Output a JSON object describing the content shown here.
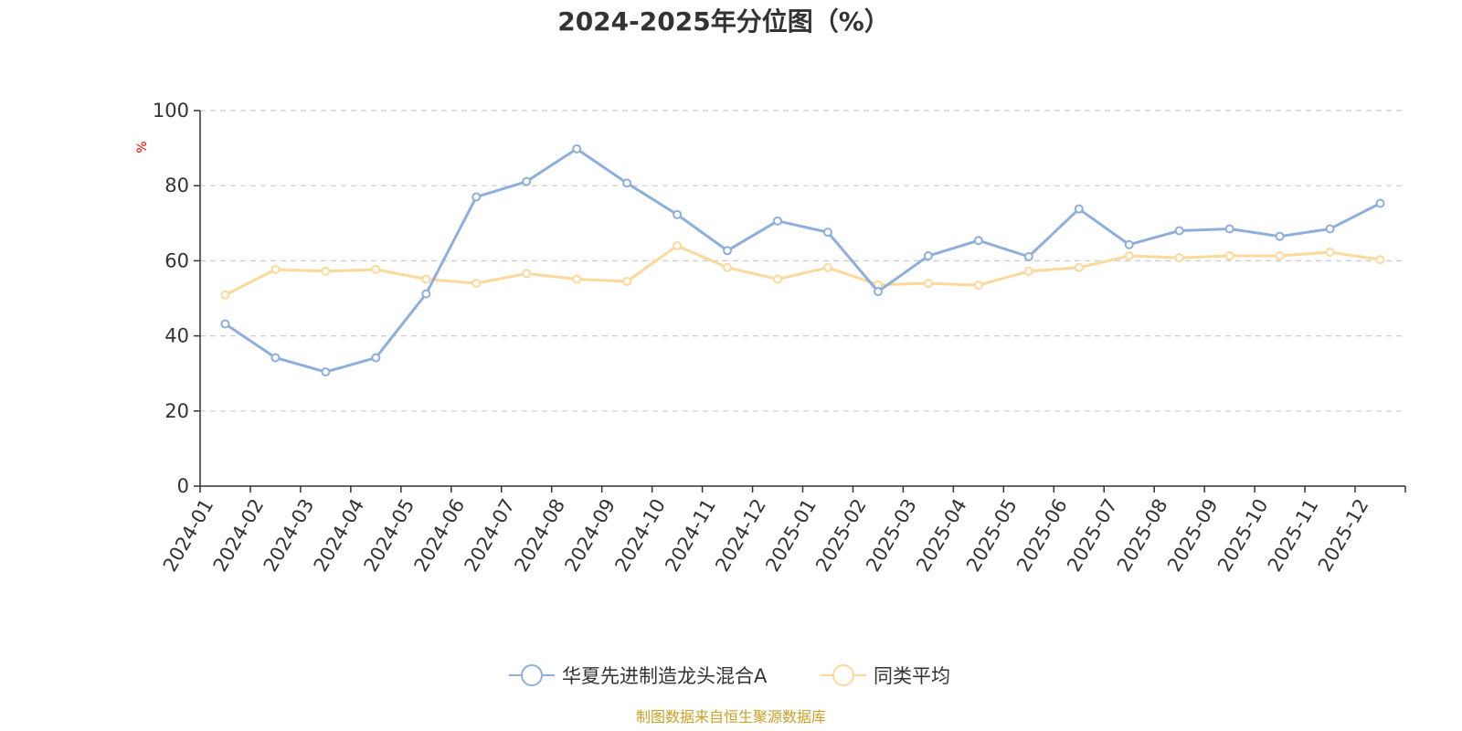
{
  "chart_data": {
    "type": "line",
    "title": "2024-2025年分位图（%）",
    "ylabel": "%",
    "xlabel": "",
    "ylim": [
      0,
      100
    ],
    "yticks": [
      0,
      20,
      40,
      60,
      80,
      100
    ],
    "grid": true,
    "legend_position": "bottom-center",
    "categories": [
      "2024-01",
      "2024-02",
      "2024-03",
      "2024-04",
      "2024-05",
      "2024-06",
      "2024-07",
      "2024-08",
      "2024-09",
      "2024-10",
      "2024-11",
      "2024-12",
      "2025-01",
      "2025-02",
      "2025-03",
      "2025-04",
      "2025-05",
      "2025-06",
      "2025-07",
      "2025-08",
      "2025-09",
      "2025-10",
      "2025-11",
      "2025-12"
    ],
    "series": [
      {
        "name": "华夏先进制造龙头混合A",
        "color": "#8eaedb",
        "values": [
          43.2,
          34.2,
          30.4,
          34.2,
          51.2,
          77.0,
          81.1,
          89.8,
          80.7,
          72.3,
          62.7,
          70.6,
          67.6,
          51.8,
          61.3,
          65.4,
          61.1,
          73.8,
          64.3,
          68.0,
          68.5,
          66.5,
          68.5,
          75.3
        ]
      },
      {
        "name": "同类平均",
        "color": "#fcd99a",
        "values": [
          50.9,
          57.7,
          57.2,
          57.7,
          55.1,
          54.0,
          56.6,
          55.1,
          54.5,
          64.0,
          58.2,
          55.1,
          58.2,
          53.6,
          54.0,
          53.5,
          57.2,
          58.2,
          61.3,
          60.8,
          61.3,
          61.3,
          62.3,
          60.3
        ]
      }
    ]
  },
  "source_text": "制图数据来自恒生聚源数据库"
}
